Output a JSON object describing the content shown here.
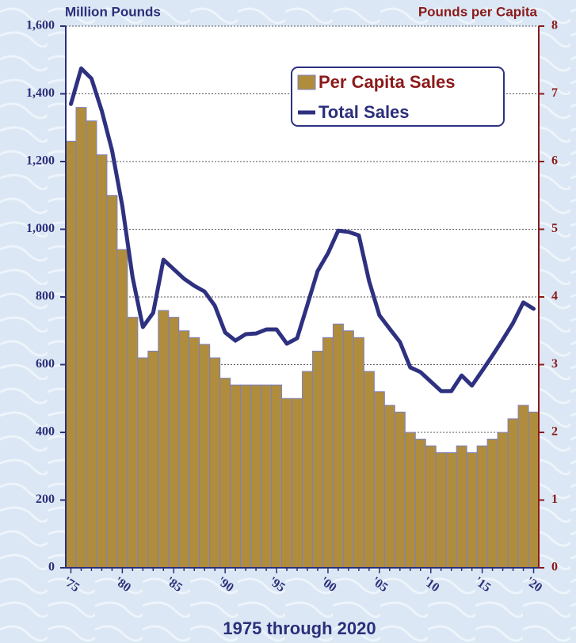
{
  "chart_data": {
    "type": "bar",
    "title": "1975 through 2020",
    "ylabel": "Million Pounds",
    "y2label": "Pounds per Capita",
    "categories": [
      "'75",
      null,
      null,
      null,
      null,
      "'80",
      null,
      null,
      null,
      null,
      "'85",
      null,
      null,
      null,
      null,
      "'90",
      null,
      null,
      null,
      null,
      "'95",
      null,
      null,
      null,
      null,
      "'00",
      null,
      null,
      null,
      null,
      "'05",
      null,
      null,
      null,
      null,
      "'10",
      null,
      null,
      null,
      null,
      "'15",
      null,
      null,
      null,
      null,
      "'20"
    ],
    "series": [
      {
        "name": "Per Capita Sales",
        "type": "bar",
        "axis": "y2",
        "color": "#b08d3c",
        "values": [
          6.3,
          6.8,
          6.6,
          6.1,
          5.5,
          4.7,
          3.7,
          3.1,
          3.2,
          3.8,
          3.7,
          3.5,
          3.4,
          3.3,
          3.1,
          2.8,
          2.7,
          2.7,
          2.7,
          2.7,
          2.7,
          2.5,
          2.5,
          2.9,
          3.2,
          3.4,
          3.6,
          3.5,
          3.4,
          2.9,
          2.6,
          2.4,
          2.3,
          2.0,
          1.9,
          1.8,
          1.7,
          1.7,
          1.8,
          1.7,
          1.8,
          1.9,
          2.0,
          2.2,
          2.4,
          2.3
        ]
      },
      {
        "name": "Total Sales",
        "type": "line",
        "axis": "y",
        "color": "#2e3180",
        "values": [
          1370,
          1475,
          1445,
          1350,
          1233,
          1069,
          858,
          711,
          753,
          910,
          882,
          854,
          833,
          816,
          774,
          695,
          671,
          690,
          692,
          704,
          704,
          662,
          678,
          777,
          877,
          929,
          996,
          992,
          982,
          847,
          746,
          706,
          667,
          592,
          578,
          550,
          522,
          522,
          568,
          538,
          582,
          627,
          674,
          723,
          784,
          765
        ]
      }
    ],
    "ylim": [
      0,
      1600
    ],
    "yticks": [
      0,
      200,
      400,
      600,
      800,
      {
        "value": 1000,
        "label": "1,000"
      },
      {
        "value": 1200,
        "label": "1,200"
      },
      {
        "value": 1400,
        "label": "1,400"
      },
      {
        "value": 1600,
        "label": "1,600"
      }
    ],
    "y2lim": [
      0,
      8
    ],
    "y2ticks": [
      0,
      1,
      2,
      3,
      4,
      5,
      6,
      7,
      8
    ],
    "grid": true,
    "legend": "upper right"
  }
}
